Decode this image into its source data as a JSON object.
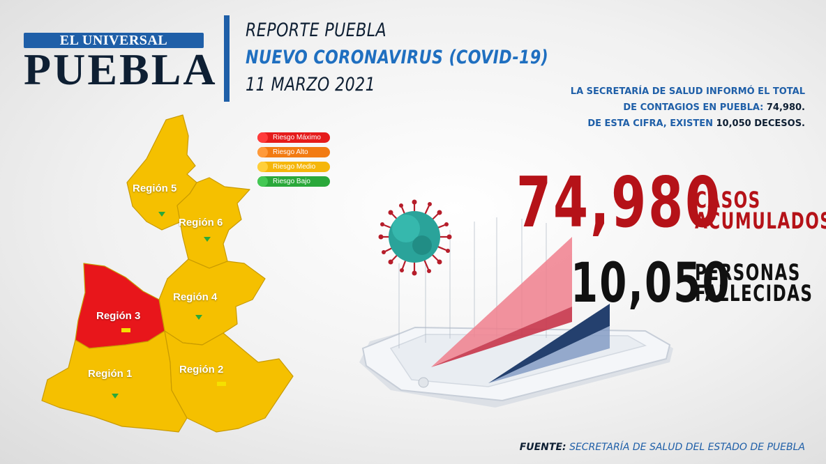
{
  "logo": {
    "top_text": "EL UNIVERSAL",
    "main_text": "PUEBLA"
  },
  "header": {
    "line1": "REPORTE PUEBLA",
    "line2": "NUEVO CORONAVIRUS (COVID-19)",
    "line3": "11 MARZO 2021"
  },
  "info": {
    "line1": "LA SECRETARÍA DE SALUD  INFORMÓ EL TOTAL",
    "line2_text": "DE CONTAGIOS EN PUEBLA: ",
    "line2_value": "74,980.",
    "line3_text": "DE ESTA CIFRA, EXISTEN ",
    "line3_value": "10,050 DECESOS."
  },
  "legend": [
    {
      "label": "Riesgo Máximo",
      "color": "#e51b1b"
    },
    {
      "label": "Riesgo Alto",
      "color": "#f27b12"
    },
    {
      "label": "Riesgo Medio",
      "color": "#f5b60a"
    },
    {
      "label": "Riesgo Bajo",
      "color": "#2aa83a"
    }
  ],
  "map": {
    "regions": [
      {
        "label": "Región 5",
        "color": "#f5c000",
        "indicator": "green"
      },
      {
        "label": "Región 6",
        "color": "#f5c000",
        "indicator": "green"
      },
      {
        "label": "Región 4",
        "color": "#f5c000",
        "indicator": "green"
      },
      {
        "label": "Región 3",
        "color": "#e8161b",
        "indicator": "yellow"
      },
      {
        "label": "Región 1",
        "color": "#f5c000",
        "indicator": "green"
      },
      {
        "label": "Región 2",
        "color": "#f5c000",
        "indicator": "yellow"
      }
    ]
  },
  "stats": {
    "cases_value": "74,980",
    "cases_label_1": "CASOS",
    "cases_label_2": "ACUMULADOS",
    "deaths_value": "10,050",
    "deaths_label_1": "PERSONAS",
    "deaths_label_2": "FALLECIDAS"
  },
  "source": {
    "label": "FUENTE:",
    "text": " SECRETARÍA DE SALUD DEL ESTADO DE PUEBLA"
  },
  "colors": {
    "brand_blue": "#1f5fa8",
    "navy": "#0e1f33",
    "cases_red": "#b51218"
  }
}
